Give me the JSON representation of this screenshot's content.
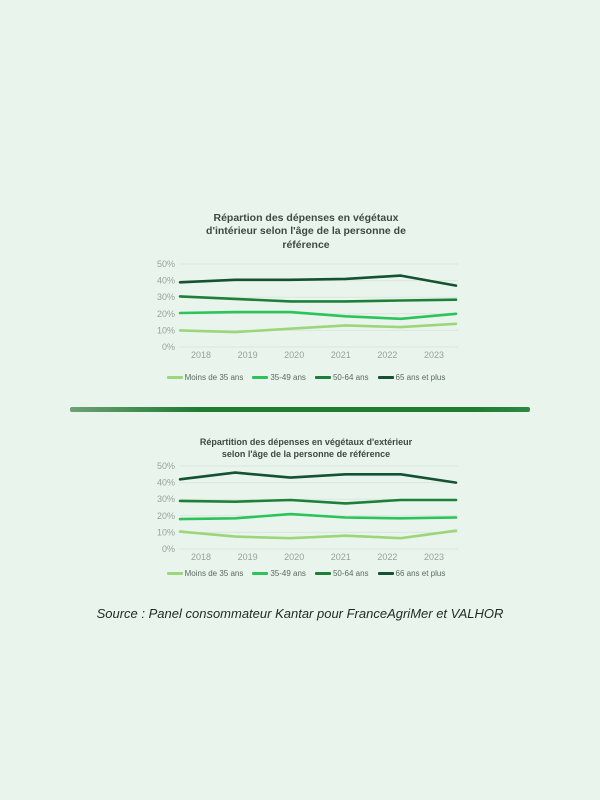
{
  "page": {
    "background": "#E9F5EC"
  },
  "chart_data": [
    {
      "type": "line",
      "title": "Répartion des dépenses en végétaux\nd'intérieur selon l'âge de la personne de\nréférence",
      "x": [
        "2018",
        "2019",
        "2020",
        "2021",
        "2022",
        "2023"
      ],
      "series": [
        {
          "name": "Moins de 35 ans",
          "color": "#9CD67A",
          "values": [
            10,
            9,
            11,
            13,
            12,
            14
          ]
        },
        {
          "name": "35-49 ans",
          "color": "#2BC45A",
          "values": [
            20.5,
            21,
            21,
            18.5,
            17,
            20
          ]
        },
        {
          "name": "50-64 ans",
          "color": "#1E8038",
          "values": [
            30.5,
            29,
            27.5,
            27.5,
            28,
            28.5
          ]
        },
        {
          "name": "65 ans et plus",
          "color": "#155231",
          "values": [
            39,
            40.5,
            40.5,
            41,
            43,
            37
          ]
        }
      ],
      "xlabel": "",
      "ylabel": "",
      "ylim": [
        0,
        50
      ],
      "y_tick_labels": [
        "0%",
        "10%",
        "20%",
        "30%",
        "40%",
        "50%"
      ],
      "grid": "horizontal",
      "legend_position": "bottom"
    },
    {
      "type": "line",
      "title": "Répartition des dépenses en végétaux d'extérieur\nselon l'âge de la personne de référence",
      "x": [
        "2018",
        "2019",
        "2020",
        "2021",
        "2022",
        "2023"
      ],
      "series": [
        {
          "name": "Moins de 35 ans",
          "color": "#9CD67A",
          "values": [
            10.5,
            7.5,
            6.5,
            8,
            6.5,
            11
          ]
        },
        {
          "name": "35-49 ans",
          "color": "#2BC45A",
          "values": [
            18,
            18.5,
            21,
            19,
            18.5,
            19
          ]
        },
        {
          "name": "50-64 ans",
          "color": "#1E8038",
          "values": [
            29,
            28.5,
            29.5,
            27.5,
            29.5,
            29.5
          ]
        },
        {
          "name": "66 ans et plus",
          "color": "#155231",
          "values": [
            42,
            46,
            43,
            45,
            45,
            40
          ]
        }
      ],
      "xlabel": "",
      "ylabel": "",
      "ylim": [
        0,
        50
      ],
      "y_tick_labels": [
        "0%",
        "10%",
        "20%",
        "30%",
        "40%",
        "50%"
      ],
      "grid": "horizontal",
      "legend_position": "bottom"
    }
  ],
  "divider": {
    "color": "#1E7B30"
  },
  "source_text": "Source : Panel consommateur Kantar pour FranceAgriMer et VALHOR"
}
